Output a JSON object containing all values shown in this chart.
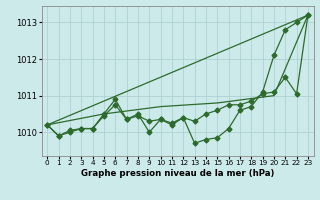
{
  "bg_color": "#cceaea",
  "grid_color": "#aacccc",
  "line_color": "#2d6b2d",
  "marker_color": "#2d6b2d",
  "xlabel": "Graphe pression niveau de la mer (hPa)",
  "xlim": [
    -0.5,
    23.5
  ],
  "ylim": [
    1009.35,
    1013.45
  ],
  "yticks": [
    1010,
    1011,
    1012,
    1013
  ],
  "xticks": [
    0,
    1,
    2,
    3,
    4,
    5,
    6,
    7,
    8,
    9,
    10,
    11,
    12,
    13,
    14,
    15,
    16,
    17,
    18,
    19,
    20,
    21,
    22,
    23
  ],
  "series": [
    {
      "x": [
        0,
        1,
        2,
        3,
        4,
        5,
        6,
        7,
        8,
        9,
        10,
        11,
        12,
        13,
        14,
        15,
        16,
        17,
        18,
        19,
        20,
        21,
        22,
        23
      ],
      "y": [
        1010.2,
        1009.9,
        1010.05,
        1010.1,
        1010.1,
        1010.45,
        1010.75,
        1010.35,
        1010.45,
        1010.3,
        1010.35,
        1010.25,
        1010.4,
        1010.3,
        1010.5,
        1010.6,
        1010.75,
        1010.75,
        1010.85,
        1011.05,
        1011.1,
        1011.5,
        1011.05,
        1013.2
      ],
      "marker": "D",
      "ms": 2.5,
      "lw": 0.9
    },
    {
      "x": [
        0,
        1,
        2,
        3,
        4,
        5,
        6,
        7,
        8,
        9,
        10,
        11,
        12,
        13,
        14,
        15,
        16,
        17,
        18,
        19,
        20,
        21,
        22,
        23
      ],
      "y": [
        1010.2,
        1009.9,
        1010.0,
        1010.1,
        1010.1,
        1010.5,
        1010.9,
        1010.35,
        1010.5,
        1010.0,
        1010.35,
        1010.2,
        1010.4,
        1009.7,
        1009.8,
        1009.85,
        1010.1,
        1010.6,
        1010.7,
        1011.1,
        1012.1,
        1012.8,
        1013.0,
        1013.2
      ],
      "marker": "D",
      "ms": 2.5,
      "lw": 0.9
    },
    {
      "x": [
        0,
        5,
        10,
        15,
        20,
        23
      ],
      "y": [
        1010.2,
        1010.5,
        1010.7,
        1010.8,
        1011.0,
        1013.2
      ],
      "marker": null,
      "ms": 0,
      "lw": 0.9
    },
    {
      "x": [
        0,
        23
      ],
      "y": [
        1010.2,
        1013.2
      ],
      "marker": null,
      "ms": 0,
      "lw": 0.9
    }
  ]
}
